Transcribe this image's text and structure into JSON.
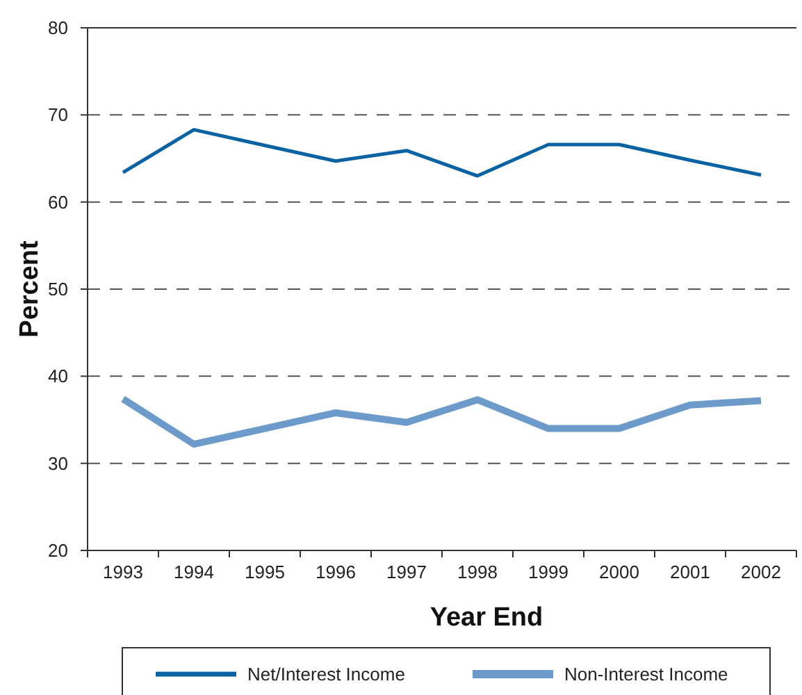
{
  "chart_data": {
    "type": "line",
    "xlabel": "Year End",
    "ylabel": "Percent",
    "categories": [
      "1993",
      "1994",
      "1995",
      "1996",
      "1997",
      "1998",
      "1999",
      "2000",
      "2001",
      "2002"
    ],
    "series": [
      {
        "name": "Net/Interest Income",
        "color": "#0a62a3",
        "values": [
          63.4,
          68.3,
          66.5,
          64.7,
          65.9,
          63.0,
          66.6,
          66.6,
          64.8,
          63.1
        ]
      },
      {
        "name": "Non-Interest Income",
        "color": "#6c9bcb",
        "values": [
          37.4,
          32.2,
          34.0,
          35.8,
          34.7,
          37.3,
          34.0,
          34.0,
          36.7,
          37.2
        ]
      }
    ],
    "ylim": [
      20,
      80
    ],
    "yticks": [
      20,
      30,
      40,
      50,
      60,
      70,
      80
    ],
    "grid": "y",
    "legend": "bottom",
    "marker": "none",
    "line_style": "solid"
  }
}
